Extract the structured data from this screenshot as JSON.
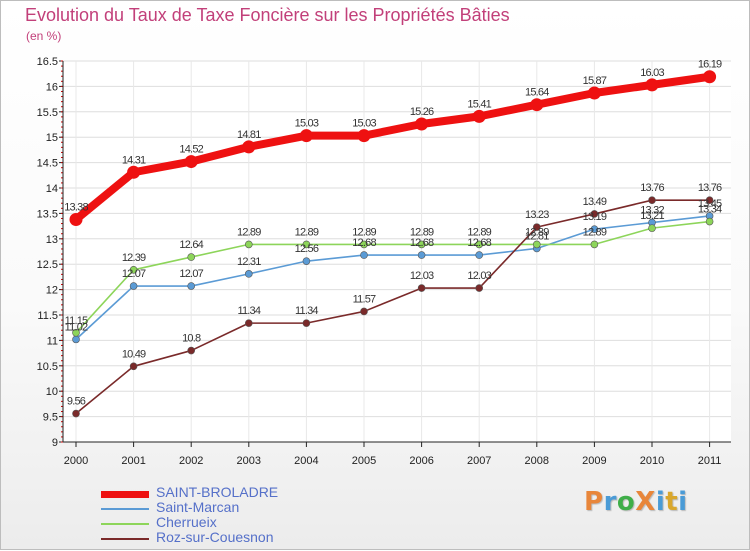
{
  "title": "Evolution du Taux de Taxe Foncière sur les Propriétés Bâties",
  "unit_label": "(en %)",
  "logo": {
    "text": "ProXiti",
    "colors": [
      "#e8863a",
      "#4a9bd6",
      "#3fae49",
      "#e8863a",
      "#4a9bd6",
      "#d9a72c",
      "#4a9bd6"
    ]
  },
  "chart_data": {
    "type": "line",
    "title": "Evolution du Taux de Taxe Foncière sur les Propriétés Bâties",
    "ylabel": "(en %)",
    "xlabel": "",
    "x": [
      "2000",
      "2001",
      "2002",
      "2003",
      "2004",
      "2005",
      "2006",
      "2007",
      "2008",
      "2009",
      "2010",
      "2011"
    ],
    "ylim": [
      9,
      16.5
    ],
    "yticks": [
      "9",
      "9.5",
      "10",
      "10.5",
      "11",
      "11.5",
      "12",
      "12.5",
      "13",
      "13.5",
      "14",
      "14.5",
      "15",
      "15.5",
      "16",
      "16.5"
    ],
    "grid": true,
    "legend_position": "bottom-left",
    "series": [
      {
        "name": "SAINT-BROLADRE",
        "color": "#ee1111",
        "highlight": true,
        "values": [
          13.38,
          14.31,
          14.52,
          14.81,
          15.03,
          15.03,
          15.26,
          15.41,
          15.64,
          15.87,
          16.03,
          16.19
        ],
        "labels": [
          "13.38",
          "14.31",
          "14.52",
          "14.81",
          "15.03",
          "15.03",
          "15.26",
          "15.41",
          "15.64",
          "15.87",
          "16.03",
          "16.19"
        ]
      },
      {
        "name": "Saint-Marcan",
        "color": "#5b9bd5",
        "highlight": false,
        "values": [
          11.02,
          12.07,
          12.07,
          12.31,
          12.56,
          12.68,
          12.68,
          12.68,
          12.81,
          13.19,
          13.32,
          13.45
        ],
        "labels": [
          "11.02",
          "12.07",
          "12.07",
          "12.31",
          "12.56",
          "12.68",
          "12.68",
          "12.68",
          "12.81",
          "13.19",
          "13.32",
          "13.45"
        ]
      },
      {
        "name": "Cherrueix",
        "color": "#8dd55a",
        "highlight": false,
        "values": [
          11.15,
          12.39,
          12.64,
          12.89,
          12.89,
          12.89,
          12.89,
          12.89,
          12.89,
          12.89,
          13.21,
          13.34
        ],
        "labels": [
          "11.15",
          "12.39",
          "12.64",
          "12.89",
          "12.89",
          "12.89",
          "12.89",
          "12.89",
          "12.89",
          "12.89",
          "13.21",
          "13.34"
        ]
      },
      {
        "name": "Roz-sur-Couesnon",
        "color": "#7a2a2a",
        "highlight": false,
        "values": [
          9.56,
          10.49,
          10.8,
          11.34,
          11.34,
          11.57,
          12.03,
          12.03,
          13.23,
          13.49,
          13.76,
          13.76
        ],
        "labels": [
          "9.56",
          "10.49",
          "10.8",
          "11.34",
          "11.34",
          "11.57",
          "12.03",
          "12.03",
          "13.23",
          "13.49",
          "13.76",
          "13.76"
        ]
      }
    ]
  }
}
